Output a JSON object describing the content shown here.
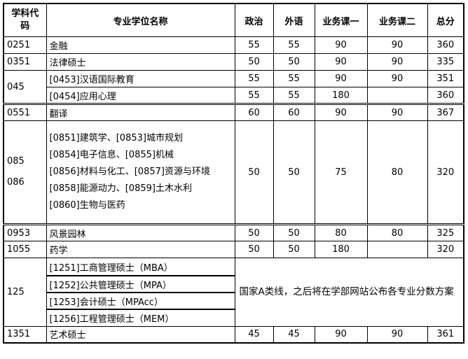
{
  "header": {
    "code": "学科代码",
    "name": "专业学位名称",
    "politics": "政治",
    "language": "外语",
    "course1": "业务课一",
    "course2": "业务课二",
    "total": "总分"
  },
  "rows": [
    {
      "code": "0251",
      "name": "金融",
      "politics": "55",
      "language": "55",
      "course1": "90",
      "course2": "90",
      "total": "360"
    },
    {
      "code": "0351",
      "name": "法律硕士",
      "politics": "50",
      "language": "50",
      "course1": "90",
      "course2": "90",
      "total": "335"
    },
    {
      "code": "045",
      "name": "[0453]汉语国际教育",
      "politics": "55",
      "language": "55",
      "course1": "90",
      "course2": "90",
      "total": "351"
    },
    {
      "name": "[0454]应用心理",
      "politics": "55",
      "language": "55",
      "course1": "180",
      "course2": "",
      "total": "360"
    },
    {
      "code": "0551",
      "name": "翻译",
      "politics": "60",
      "language": "60",
      "course1": "90",
      "course2": "90",
      "total": "367"
    },
    {
      "code": "085\n086",
      "code_a": "085",
      "code_b": "086",
      "names": [
        "[0851]建筑学、[0853]城市规划",
        "[0854]电子信息、[0855]机械",
        "[0856]材料与化工、[0857]资源与环境",
        "[0858]能源动力、[0859]土木水利",
        "[0860]生物与医药"
      ],
      "politics": "50",
      "language": "50",
      "course1": "75",
      "course2": "80",
      "total": "320"
    },
    {
      "code": "0953",
      "name": "风景园林",
      "politics": "50",
      "language": "50",
      "course1": "80",
      "course2": "80",
      "total": "325"
    },
    {
      "code": "1055",
      "name": "药学",
      "politics": "50",
      "language": "50",
      "course1": "180",
      "course2": "",
      "total": "320"
    },
    {
      "code": "125",
      "names": [
        "[1251]工商管理硕士（MBA）",
        "[1252]公共管理硕士（MPA）",
        "[1253]会计硕士（MPAcc）",
        "[1256]工程管理硕士（MEM）"
      ],
      "note": "国家A类线，之后将在学部网站公布各专业分数方案"
    },
    {
      "code": "1351",
      "name": "艺术硕士",
      "politics": "45",
      "language": "45",
      "course1": "90",
      "course2": "90",
      "total": "361"
    }
  ]
}
